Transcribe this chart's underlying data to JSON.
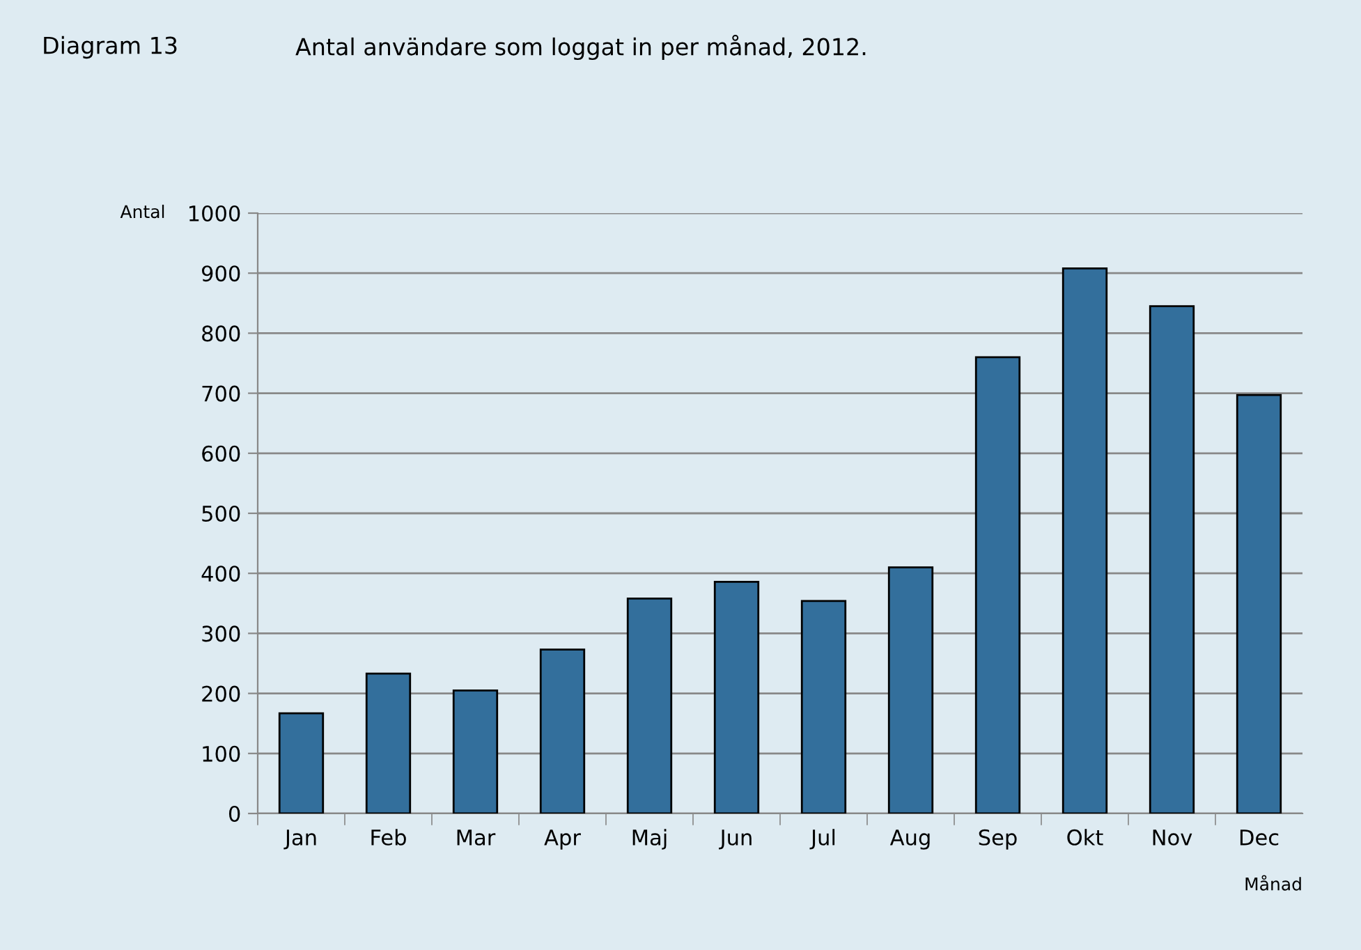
{
  "chart_data": {
    "type": "bar",
    "title": "Antal användare som loggat in per månad, 2012.",
    "annotations": [
      "Diagram 13"
    ],
    "ylabel": "Antal",
    "xlabel": "Månad",
    "categories": [
      "Jan",
      "Feb",
      "Mar",
      "Apr",
      "Maj",
      "Jun",
      "Jul",
      "Aug",
      "Sep",
      "Okt",
      "Nov",
      "Dec"
    ],
    "values": [
      167,
      233,
      205,
      273,
      358,
      386,
      354,
      410,
      760,
      908,
      845,
      697
    ],
    "color": "#336f9c",
    "ylim": [
      0,
      1000
    ],
    "yticks": [
      0,
      100,
      200,
      300,
      400,
      500,
      600,
      700,
      800,
      900,
      1000
    ],
    "grid": "y",
    "legend": false
  }
}
